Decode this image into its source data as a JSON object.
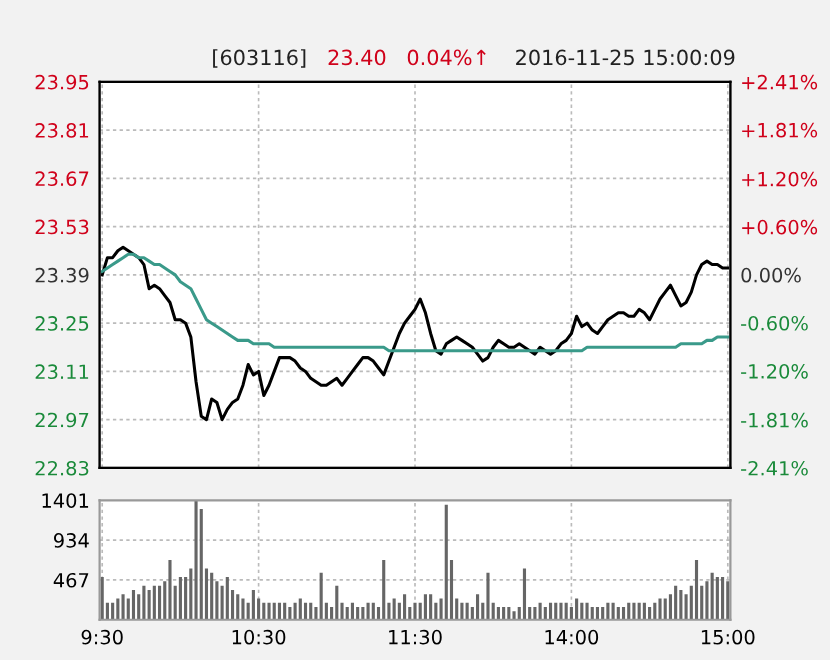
{
  "chart_data": [
    {
      "type": "line",
      "title": "[603116]",
      "annotations": [
        "23.40",
        "0.04%↑",
        "2016-11-25 15:00:09"
      ],
      "categories": [
        null,
        null,
        null,
        null,
        null,
        null,
        null,
        null,
        null,
        null,
        null,
        null,
        null,
        null,
        null,
        null,
        null,
        null,
        null,
        null,
        null,
        null,
        null,
        null,
        null,
        null,
        null,
        null,
        null,
        null,
        null,
        null,
        null,
        null,
        null,
        null,
        null,
        null,
        null,
        null,
        null,
        null,
        null,
        null,
        null,
        null,
        null,
        null,
        null,
        null,
        null,
        null,
        null,
        null,
        null,
        null,
        null,
        null,
        null,
        null,
        null,
        null,
        null,
        null,
        null,
        null,
        null,
        null,
        null,
        null,
        null,
        null,
        null,
        null,
        null,
        null,
        null,
        null,
        null,
        null,
        null,
        null,
        null,
        null,
        null,
        null,
        null,
        null,
        null,
        null,
        null,
        null,
        null,
        null,
        null,
        null,
        null,
        null,
        null,
        null,
        null,
        null,
        null,
        null,
        null,
        null,
        null,
        null,
        null,
        null,
        null,
        null,
        null,
        null,
        null,
        null,
        null,
        null,
        null,
        null,
        null
      ],
      "series": [
        {
          "color": "#000000",
          "values": [
            23.39,
            23.44,
            23.44,
            23.46,
            23.47,
            23.46,
            23.45,
            23.44,
            23.42,
            23.35,
            23.36,
            23.35,
            23.33,
            23.31,
            23.26,
            23.26,
            23.25,
            23.21,
            23.08,
            22.98,
            22.97,
            23.03,
            23.02,
            22.97,
            23.0,
            23.02,
            23.03,
            23.07,
            23.13,
            23.1,
            23.11,
            23.04,
            23.07,
            23.11,
            23.15,
            23.15,
            23.15,
            23.14,
            23.12,
            23.11,
            23.09,
            23.08,
            23.07,
            23.07,
            23.08,
            23.09,
            23.07,
            23.09,
            23.11,
            23.13,
            23.15,
            23.15,
            23.14,
            23.12,
            23.1,
            23.14,
            23.18,
            23.22,
            23.25,
            23.27,
            23.29,
            23.32,
            23.28,
            23.22,
            23.17,
            23.16,
            23.19,
            23.2,
            23.21,
            23.2,
            23.19,
            23.18,
            23.16,
            23.14,
            23.15,
            23.18,
            23.2,
            23.19,
            23.18,
            23.18,
            23.19,
            23.18,
            23.17,
            23.16,
            23.18,
            23.17,
            23.16,
            23.17,
            23.19,
            23.2,
            23.22,
            23.27,
            23.24,
            23.25,
            23.23,
            23.22,
            23.24,
            23.26,
            23.27,
            23.28,
            23.28,
            23.27,
            23.27,
            23.29,
            23.28,
            23.26,
            23.29,
            23.32,
            23.34,
            23.36,
            23.33,
            23.3,
            23.31,
            23.34,
            23.39,
            23.42,
            23.43,
            23.42,
            23.42,
            23.41,
            23.41
          ]
        },
        {
          "color": "#3a9a8a",
          "values": [
            23.4,
            23.41,
            23.42,
            23.43,
            23.44,
            23.45,
            23.45,
            23.44,
            23.44,
            23.43,
            23.42,
            23.42,
            23.41,
            23.4,
            23.39,
            23.37,
            23.36,
            23.35,
            23.32,
            23.29,
            23.26,
            23.25,
            23.24,
            23.23,
            23.22,
            23.21,
            23.2,
            23.2,
            23.2,
            23.19,
            23.19,
            23.19,
            23.19,
            23.18,
            23.18,
            23.18,
            23.18,
            23.18,
            23.18,
            23.18,
            23.18,
            23.18,
            23.18,
            23.18,
            23.18,
            23.18,
            23.18,
            23.18,
            23.18,
            23.18,
            23.18,
            23.18,
            23.18,
            23.18,
            23.18,
            23.17,
            23.17,
            23.17,
            23.17,
            23.17,
            23.17,
            23.17,
            23.17,
            23.17,
            23.17,
            23.17,
            23.17,
            23.17,
            23.17,
            23.17,
            23.17,
            23.17,
            23.17,
            23.17,
            23.17,
            23.17,
            23.17,
            23.17,
            23.17,
            23.17,
            23.17,
            23.17,
            23.17,
            23.17,
            23.17,
            23.17,
            23.17,
            23.17,
            23.17,
            23.17,
            23.17,
            23.17,
            23.17,
            23.18,
            23.18,
            23.18,
            23.18,
            23.18,
            23.18,
            23.18,
            23.18,
            23.18,
            23.18,
            23.18,
            23.18,
            23.18,
            23.18,
            23.18,
            23.18,
            23.18,
            23.18,
            23.19,
            23.19,
            23.19,
            23.19,
            23.19,
            23.2,
            23.2,
            23.21,
            23.21,
            23.21
          ]
        }
      ],
      "ylim": [
        22.83,
        23.95
      ],
      "yticks": [
        22.83,
        22.97,
        23.11,
        23.25,
        23.39,
        23.53,
        23.67,
        23.81,
        23.95
      ],
      "y2lim": [
        -2.41,
        2.41
      ],
      "y2ticks": [
        {
          "value": -2.41,
          "label": "-2.41%"
        },
        {
          "value": -1.81,
          "label": "-1.81%"
        },
        {
          "value": -1.2,
          "label": "-1.20%"
        },
        {
          "value": -0.6,
          "label": "-0.60%"
        },
        {
          "value": 0,
          "label": "0.00%"
        },
        {
          "value": 0.6,
          "label": "+0.60%"
        },
        {
          "value": 1.2,
          "label": "+1.20%"
        },
        {
          "value": 1.81,
          "label": "+1.81%"
        },
        {
          "value": 2.41,
          "label": "+2.41%"
        }
      ],
      "grid": true,
      "tick_labels": "y",
      "line_style": "solid",
      "marker": "none"
    },
    {
      "type": "bar",
      "color": "#666666",
      "categories": [
        "9:30",
        null,
        null,
        null,
        null,
        null,
        null,
        null,
        null,
        null,
        null,
        null,
        null,
        null,
        null,
        null,
        null,
        null,
        null,
        null,
        null,
        null,
        null,
        null,
        null,
        null,
        null,
        null,
        null,
        null,
        "10:30",
        null,
        null,
        null,
        null,
        null,
        null,
        null,
        null,
        null,
        null,
        null,
        null,
        null,
        null,
        null,
        null,
        null,
        null,
        null,
        null,
        null,
        null,
        null,
        null,
        null,
        null,
        null,
        null,
        null,
        "11:30",
        null,
        null,
        null,
        null,
        null,
        null,
        null,
        null,
        null,
        null,
        null,
        null,
        null,
        null,
        null,
        null,
        null,
        null,
        null,
        null,
        null,
        null,
        null,
        null,
        null,
        null,
        null,
        null,
        null,
        "14:00",
        null,
        null,
        null,
        null,
        null,
        null,
        null,
        null,
        null,
        null,
        null,
        null,
        null,
        null,
        null,
        null,
        null,
        null,
        null,
        null,
        null,
        null,
        null,
        null,
        null,
        null,
        null,
        null,
        null,
        "15:00"
      ],
      "values": [
        500,
        200,
        200,
        250,
        300,
        250,
        350,
        300,
        400,
        350,
        400,
        400,
        450,
        700,
        400,
        500,
        500,
        600,
        1400,
        1300,
        600,
        550,
        450,
        400,
        500,
        350,
        300,
        250,
        200,
        350,
        250,
        200,
        200,
        200,
        200,
        200,
        150,
        200,
        250,
        200,
        200,
        150,
        550,
        200,
        150,
        400,
        200,
        150,
        200,
        150,
        150,
        200,
        200,
        150,
        700,
        200,
        250,
        200,
        300,
        150,
        200,
        200,
        300,
        300,
        200,
        250,
        1350,
        700,
        250,
        200,
        200,
        150,
        300,
        200,
        550,
        200,
        150,
        150,
        150,
        100,
        150,
        600,
        150,
        150,
        200,
        150,
        200,
        200,
        200,
        200,
        150,
        250,
        200,
        200,
        150,
        150,
        150,
        200,
        200,
        150,
        150,
        200,
        200,
        200,
        200,
        150,
        200,
        250,
        250,
        300,
        400,
        350,
        300,
        400,
        700,
        400,
        450,
        550,
        500,
        500,
        450
      ],
      "ylim": [
        0,
        1401
      ],
      "yticks": [
        467,
        934,
        1401
      ],
      "grid": true
    }
  ]
}
